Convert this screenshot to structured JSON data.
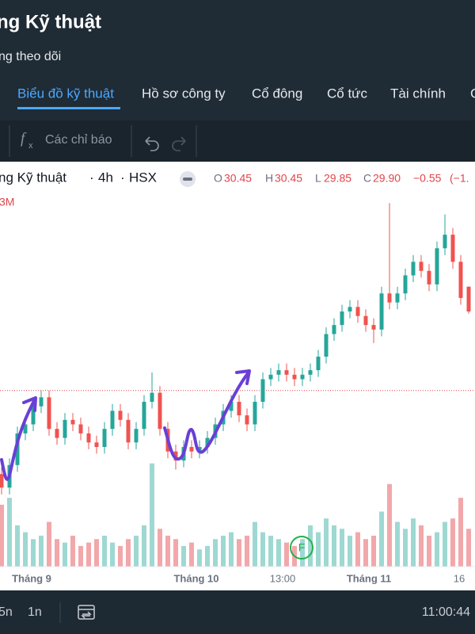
{
  "header": {
    "title": "ng Kỹ thuật",
    "subtitle": "ng theo dõi"
  },
  "tabs": [
    "Biểu đồ kỹ thuật",
    "Hồ sơ công ty",
    "Cổ đông",
    "Cổ tức",
    "Tài chính",
    "C"
  ],
  "toolbar": {
    "indicators": "Các chỉ báo"
  },
  "chart_data": {
    "type": "candlestick",
    "title": "ng Kỹ thuật",
    "interval": "4h",
    "exchange": "HSX",
    "legend": {
      "o_label": "O",
      "open": "30.45",
      "h_label": "H",
      "high": "30.45",
      "l_label": "L",
      "low": "29.85",
      "c_label": "C",
      "close": "29.90",
      "change": "−0.55",
      "change_pct": "(−1."
    },
    "volume_label": "3M",
    "event_marker": "F",
    "up_color": "#26a69a",
    "down_color": "#ef5350",
    "up_volume_color": "#9fd8d2",
    "down_volume_color": "#f2a7aa",
    "price_line": 28.15,
    "price_line_color": "#e0454b",
    "ylim": [
      24.25,
      33.2
    ],
    "volume_lim": [
      0,
      3.8
    ],
    "x_labels": [
      "Tháng 9",
      "Tháng 10",
      "13:00",
      "Tháng 11",
      "16"
    ],
    "series": {
      "open": [
        26.3,
        26.0,
        26.5,
        27.2,
        27.4,
        27.8,
        28.0,
        27.3,
        27.1,
        27.5,
        27.4,
        27.2,
        27.0,
        26.9,
        27.3,
        27.7,
        27.5,
        27.0,
        27.3,
        27.9,
        28.1,
        27.3,
        26.8,
        26.6,
        26.9,
        26.8,
        26.9,
        27.1,
        27.4,
        27.7,
        27.9,
        27.6,
        27.4,
        27.9,
        28.4,
        28.5,
        28.6,
        28.5,
        28.4,
        28.5,
        28.6,
        28.9,
        29.4,
        29.6,
        29.9,
        30.0,
        29.8,
        29.6,
        29.5,
        30.3,
        30.1,
        30.3,
        30.7,
        31.0,
        30.8,
        30.5,
        31.3,
        31.6,
        31.0,
        30.45
      ],
      "high": [
        26.45,
        26.65,
        27.35,
        27.55,
        27.95,
        28.15,
        28.15,
        27.45,
        27.65,
        27.65,
        27.55,
        27.35,
        27.15,
        27.45,
        27.85,
        27.85,
        27.65,
        27.45,
        28.05,
        28.55,
        28.25,
        27.45,
        26.95,
        27.05,
        27.05,
        27.05,
        27.25,
        27.55,
        27.85,
        28.05,
        28.05,
        27.75,
        28.05,
        28.55,
        28.65,
        28.75,
        28.75,
        28.65,
        28.65,
        28.75,
        29.05,
        29.55,
        29.75,
        30.05,
        30.15,
        30.15,
        29.95,
        29.75,
        30.45,
        32.3,
        30.45,
        30.85,
        31.15,
        31.15,
        30.95,
        31.45,
        32.05,
        31.75,
        31.15,
        30.45
      ],
      "low": [
        25.85,
        25.85,
        26.35,
        27.05,
        27.25,
        27.65,
        27.15,
        26.95,
        26.95,
        27.25,
        27.05,
        26.85,
        26.75,
        26.75,
        27.15,
        27.35,
        26.85,
        26.85,
        27.15,
        27.75,
        27.15,
        26.65,
        26.4,
        26.45,
        26.65,
        26.65,
        26.75,
        26.95,
        27.25,
        27.55,
        27.45,
        27.25,
        27.25,
        27.75,
        28.25,
        28.35,
        28.35,
        28.25,
        28.25,
        28.35,
        28.45,
        28.75,
        29.25,
        29.45,
        29.75,
        29.65,
        29.45,
        29.2,
        29.35,
        29.95,
        29.95,
        30.15,
        30.55,
        30.65,
        30.35,
        30.35,
        31.15,
        30.85,
        30.05,
        29.85
      ],
      "close": [
        26.0,
        26.5,
        27.2,
        27.4,
        27.8,
        28.0,
        27.3,
        27.1,
        27.5,
        27.4,
        27.2,
        27.0,
        26.9,
        27.3,
        27.7,
        27.5,
        27.0,
        27.3,
        27.9,
        28.1,
        27.3,
        26.8,
        26.6,
        26.9,
        26.8,
        26.9,
        27.1,
        27.4,
        27.7,
        27.9,
        27.6,
        27.4,
        27.9,
        28.4,
        28.5,
        28.6,
        28.5,
        28.4,
        28.5,
        28.6,
        28.9,
        29.4,
        29.6,
        29.9,
        30.0,
        29.8,
        29.6,
        29.5,
        30.3,
        30.1,
        30.3,
        30.7,
        31.0,
        30.8,
        30.5,
        31.3,
        31.6,
        31.0,
        30.2,
        29.9
      ],
      "volume": [
        1.8,
        2.0,
        1.2,
        1.0,
        0.8,
        0.9,
        1.3,
        0.8,
        0.7,
        0.9,
        0.6,
        0.7,
        0.8,
        0.9,
        0.7,
        0.6,
        0.8,
        0.9,
        1.2,
        3.0,
        1.1,
        0.9,
        0.8,
        0.6,
        0.7,
        0.5,
        0.6,
        0.8,
        0.9,
        1.0,
        0.8,
        0.9,
        1.3,
        1.0,
        0.9,
        0.8,
        0.7,
        0.6,
        0.8,
        1.2,
        1.0,
        1.4,
        1.2,
        1.1,
        0.9,
        1.0,
        0.8,
        0.9,
        1.6,
        2.4,
        1.3,
        1.1,
        1.4,
        1.2,
        0.9,
        1.0,
        1.3,
        1.4,
        2.0,
        1.1
      ]
    }
  },
  "bottom_bar": {
    "ranges": [
      "5n",
      "1n"
    ],
    "time": "11:00:44"
  }
}
